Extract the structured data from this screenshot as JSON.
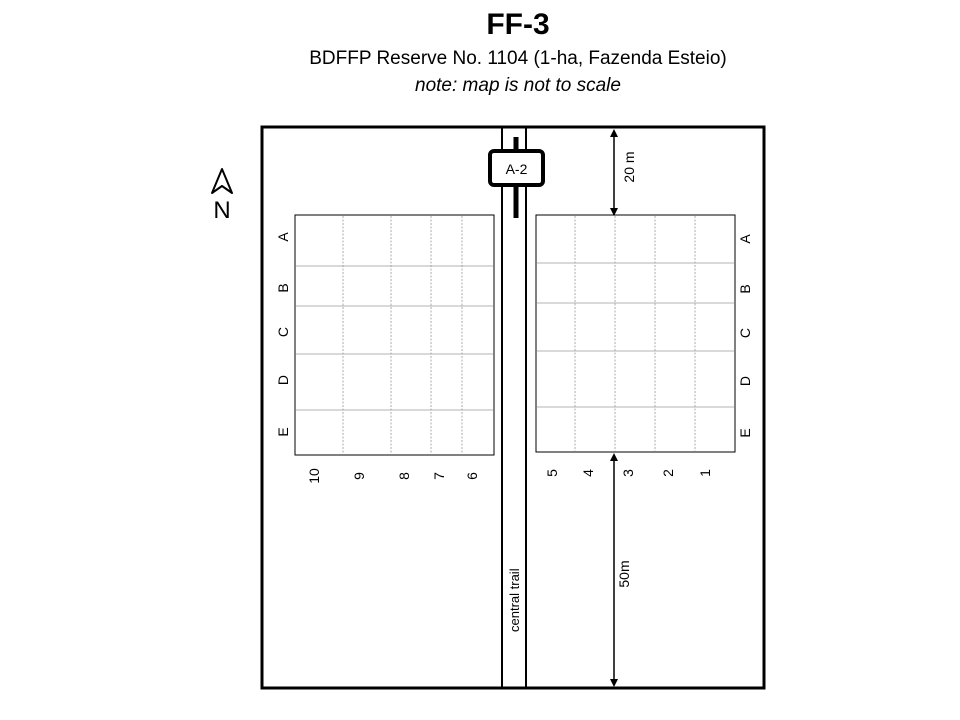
{
  "header": {
    "title": "FF-3",
    "subtitle": "BDFFP Reserve No. 1104 (1-ha, Fazenda Esteio)",
    "note": "note: map is not to scale"
  },
  "compass": {
    "label": "N"
  },
  "marker": {
    "label": "A-2"
  },
  "trail": {
    "label": "central trail"
  },
  "dimensions": {
    "top": "20 m",
    "bottom": "50m"
  },
  "rows": [
    "A",
    "B",
    "C",
    "D",
    "E"
  ],
  "left_columns": [
    "10",
    "9",
    "8",
    "7",
    "6"
  ],
  "right_columns": [
    "5",
    "4",
    "3",
    "2",
    "1"
  ]
}
